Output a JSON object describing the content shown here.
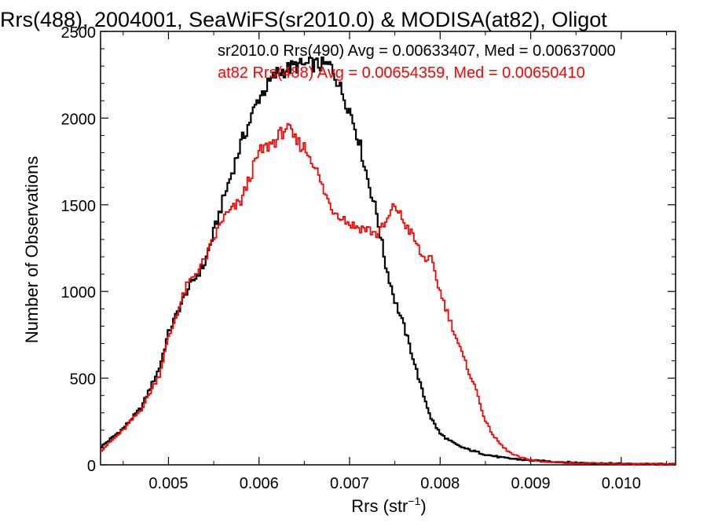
{
  "chart_data": {
    "type": "line",
    "title": "Rrs(488), 2004001, SeaWiFS(sr2010.0) & MODISA(at82), Oligot",
    "xlabel": "Rrs (str",
    "xlabel_sup": "−1",
    "xlabel_close": ")",
    "ylabel": "Number of Observations",
    "xlim": [
      0.00425,
      0.0106
    ],
    "ylim": [
      0,
      2500
    ],
    "x_ticks": [
      {
        "value": 0.005,
        "label": "0.005"
      },
      {
        "value": 0.006,
        "label": "0.006"
      },
      {
        "value": 0.007,
        "label": "0.007"
      },
      {
        "value": 0.008,
        "label": "0.008"
      },
      {
        "value": 0.009,
        "label": "0.009"
      },
      {
        "value": 0.01,
        "label": "0.010"
      }
    ],
    "y_ticks": [
      {
        "value": 0,
        "label": "0"
      },
      {
        "value": 500,
        "label": "500"
      },
      {
        "value": 1000,
        "label": "1000"
      },
      {
        "value": 1500,
        "label": "1500"
      },
      {
        "value": 2000,
        "label": "2000"
      },
      {
        "value": 2500,
        "label": "2500"
      }
    ],
    "grid": false,
    "legend_placement": "top",
    "series": [
      {
        "name": "sr2010.0 Rrs(490)",
        "legend": "sr2010.0 Rrs(490) Avg = 0.00633407, Med = 0.00637000",
        "color": "#000000",
        "step": true,
        "points": [
          [
            0.00425,
            100
          ],
          [
            0.0045,
            210
          ],
          [
            0.0047,
            330
          ],
          [
            0.0049,
            560
          ],
          [
            0.005,
            760
          ],
          [
            0.0052,
            1000
          ],
          [
            0.0054,
            1160
          ],
          [
            0.0056,
            1520
          ],
          [
            0.0058,
            1850
          ],
          [
            0.006,
            2120
          ],
          [
            0.0062,
            2260
          ],
          [
            0.0064,
            2300
          ],
          [
            0.0066,
            2310
          ],
          [
            0.0068,
            2300
          ],
          [
            0.0069,
            2170
          ],
          [
            0.007,
            2050
          ],
          [
            0.0071,
            1880
          ],
          [
            0.0072,
            1650
          ],
          [
            0.0073,
            1450
          ],
          [
            0.0074,
            1150
          ],
          [
            0.0075,
            950
          ],
          [
            0.0076,
            800
          ],
          [
            0.0077,
            620
          ],
          [
            0.0078,
            430
          ],
          [
            0.0079,
            270
          ],
          [
            0.008,
            180
          ],
          [
            0.0081,
            140
          ],
          [
            0.0082,
            110
          ],
          [
            0.0083,
            90
          ],
          [
            0.0085,
            60
          ],
          [
            0.0087,
            40
          ],
          [
            0.009,
            25
          ],
          [
            0.0095,
            12
          ],
          [
            0.01,
            6
          ],
          [
            0.0106,
            3
          ]
        ]
      },
      {
        "name": "at82 Rrs(488)",
        "legend": "at82 Rrs(488) Avg = 0.00654359, Med = 0.00650410",
        "color": "#ff0000",
        "step": true,
        "points": [
          [
            0.00425,
            80
          ],
          [
            0.0045,
            200
          ],
          [
            0.0047,
            320
          ],
          [
            0.0049,
            520
          ],
          [
            0.005,
            730
          ],
          [
            0.0052,
            1030
          ],
          [
            0.0054,
            1180
          ],
          [
            0.0056,
            1420
          ],
          [
            0.0058,
            1520
          ],
          [
            0.006,
            1800
          ],
          [
            0.0062,
            1880
          ],
          [
            0.0063,
            1950
          ],
          [
            0.0064,
            1870
          ],
          [
            0.0065,
            1830
          ],
          [
            0.0066,
            1750
          ],
          [
            0.0067,
            1600
          ],
          [
            0.0068,
            1480
          ],
          [
            0.0069,
            1440
          ],
          [
            0.007,
            1390
          ],
          [
            0.0071,
            1370
          ],
          [
            0.0072,
            1360
          ],
          [
            0.0073,
            1330
          ],
          [
            0.0074,
            1390
          ],
          [
            0.0075,
            1500
          ],
          [
            0.0076,
            1400
          ],
          [
            0.0077,
            1320
          ],
          [
            0.0078,
            1200
          ],
          [
            0.0079,
            1180
          ],
          [
            0.008,
            1000
          ],
          [
            0.0081,
            850
          ],
          [
            0.0082,
            700
          ],
          [
            0.0083,
            560
          ],
          [
            0.0084,
            430
          ],
          [
            0.0085,
            250
          ],
          [
            0.0086,
            160
          ],
          [
            0.0087,
            100
          ],
          [
            0.0088,
            60
          ],
          [
            0.0089,
            40
          ],
          [
            0.0091,
            20
          ],
          [
            0.0095,
            10
          ],
          [
            0.01,
            6
          ],
          [
            0.0106,
            3
          ]
        ]
      }
    ]
  }
}
